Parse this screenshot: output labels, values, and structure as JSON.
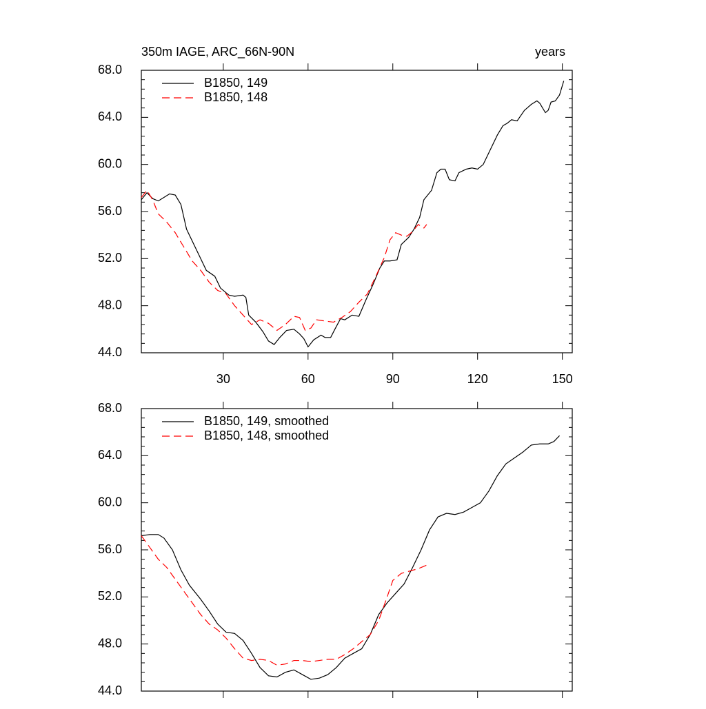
{
  "chart_data": [
    {
      "type": "line",
      "title": "350m IAGE, ARC_66N-90N",
      "subtitle": "years",
      "xlim": [
        1,
        153.5
      ],
      "xticks": [
        30,
        60,
        90,
        120,
        150
      ],
      "ylim": [
        44,
        68
      ],
      "yticks": [
        {
          "value": 44,
          "label": "44.0"
        },
        {
          "value": 48,
          "label": "48.0"
        },
        {
          "value": 52,
          "label": "52.0"
        },
        {
          "value": 56,
          "label": "56.0"
        },
        {
          "value": 60,
          "label": "60.0"
        },
        {
          "value": 64,
          "label": "64.0"
        },
        {
          "value": 68,
          "label": "68.0"
        }
      ],
      "legend": "upper left",
      "series": [
        {
          "name": "B1850, 149",
          "color": "#000000",
          "dash": false,
          "x": [
            1,
            3,
            5,
            7,
            9,
            11,
            13,
            15,
            17,
            21,
            24,
            27,
            29,
            32,
            34,
            37,
            38,
            39,
            41.5,
            44,
            46,
            48,
            50,
            52.4,
            55,
            57,
            58.5,
            60,
            62,
            64.6,
            66,
            68,
            69.5,
            71.5,
            73,
            75.6,
            78,
            80.5,
            83,
            85.4,
            87,
            89,
            91.5,
            93,
            95.6,
            97.5,
            99.5,
            101,
            103.7,
            105.6,
            107,
            108.5,
            110,
            112,
            113.4,
            116,
            118,
            120,
            122,
            124.4,
            127,
            129,
            130.5,
            132,
            134,
            136.6,
            139,
            141,
            142,
            144,
            145,
            146,
            147.5,
            149,
            150.5
          ],
          "values": [
            57.0,
            57.6,
            57.1,
            56.9,
            57.2,
            57.5,
            57.4,
            56.6,
            54.5,
            52.5,
            51.0,
            50.5,
            49.5,
            48.9,
            48.8,
            48.9,
            48.7,
            47.2,
            46.6,
            45.8,
            45.0,
            44.7,
            45.3,
            45.9,
            46.0,
            45.6,
            45.2,
            44.5,
            45.1,
            45.5,
            45.3,
            45.3,
            46.0,
            46.9,
            46.8,
            47.2,
            47.1,
            48.5,
            49.8,
            51.2,
            51.8,
            51.8,
            51.9,
            53.2,
            53.8,
            54.5,
            55.5,
            57.0,
            57.8,
            59.3,
            59.6,
            59.6,
            58.7,
            58.6,
            59.3,
            59.6,
            59.7,
            59.6,
            60.0,
            61.2,
            62.5,
            63.3,
            63.5,
            63.8,
            63.7,
            64.6,
            65.1,
            65.4,
            65.2,
            64.4,
            64.6,
            65.3,
            65.4,
            65.9,
            67.1
          ]
        },
        {
          "name": "B1850, 148",
          "color": "#ff0000",
          "dash": true,
          "x": [
            1,
            3,
            5,
            7,
            10,
            13,
            16,
            19,
            22,
            25,
            28,
            31,
            34,
            37,
            40,
            43,
            46,
            49,
            52,
            55,
            57,
            59,
            61,
            63,
            66,
            69,
            72,
            75,
            78,
            81,
            84,
            87,
            89,
            91,
            93,
            95,
            97,
            99,
            101,
            102
          ],
          "values": [
            57.2,
            57.8,
            57.0,
            55.8,
            55.1,
            54.2,
            53.0,
            51.8,
            51.0,
            50.0,
            49.3,
            49.0,
            48.0,
            47.2,
            46.4,
            46.8,
            46.5,
            45.9,
            46.4,
            47.1,
            47.0,
            45.9,
            46.1,
            46.8,
            46.7,
            46.6,
            47.0,
            47.5,
            48.3,
            49.0,
            50.5,
            52.1,
            53.6,
            54.2,
            54.0,
            53.9,
            54.3,
            54.9,
            54.6,
            54.9
          ]
        }
      ]
    },
    {
      "type": "line",
      "xlim": [
        1,
        153.5
      ],
      "xticks": [
        30,
        60,
        90,
        120,
        150
      ],
      "ylim": [
        44,
        68
      ],
      "yticks": [
        {
          "value": 44,
          "label": "44.0"
        },
        {
          "value": 48,
          "label": "48.0"
        },
        {
          "value": 52,
          "label": "52.0"
        },
        {
          "value": 56,
          "label": "56.0"
        },
        {
          "value": 60,
          "label": "60.0"
        },
        {
          "value": 64,
          "label": "64.0"
        },
        {
          "value": 68,
          "label": "68.0"
        }
      ],
      "legend": "upper left",
      "series": [
        {
          "name": "B1850, 149, smoothed",
          "color": "#000000",
          "dash": false,
          "x": [
            1,
            4,
            7,
            9,
            12,
            15,
            18,
            22,
            25,
            28,
            31,
            34,
            37,
            40,
            43,
            46,
            49,
            52,
            55,
            58,
            61,
            64,
            67,
            70,
            73,
            76,
            79,
            82,
            85,
            88,
            91,
            94,
            97,
            100,
            103,
            106,
            109,
            112,
            115,
            118,
            121,
            124,
            127,
            130,
            133,
            136,
            139,
            142,
            145,
            147,
            149
          ],
          "values": [
            57.2,
            57.3,
            57.3,
            57.0,
            56.0,
            54.3,
            53.0,
            51.8,
            50.8,
            49.7,
            49.0,
            48.9,
            48.3,
            47.2,
            46.0,
            45.3,
            45.2,
            45.6,
            45.8,
            45.4,
            45.0,
            45.1,
            45.4,
            46.0,
            46.8,
            47.2,
            47.6,
            48.8,
            50.5,
            51.5,
            52.3,
            53.1,
            54.5,
            56.0,
            57.7,
            58.8,
            59.1,
            59.0,
            59.2,
            59.6,
            60.0,
            61.0,
            62.3,
            63.3,
            63.8,
            64.3,
            64.9,
            65.0,
            65.0,
            65.2,
            65.7
          ]
        },
        {
          "name": "B1850, 148, smoothed",
          "color": "#ff0000",
          "dash": true,
          "x": [
            1,
            4,
            7,
            10,
            13,
            16,
            19,
            22,
            25,
            28,
            31,
            34,
            37,
            40,
            43,
            46,
            49,
            52,
            55,
            58,
            61,
            64,
            67,
            70,
            73,
            76,
            79,
            82,
            85,
            88,
            90,
            93,
            96,
            99,
            102
          ],
          "values": [
            57.2,
            56.2,
            55.2,
            54.5,
            53.5,
            52.5,
            51.5,
            50.5,
            49.7,
            49.2,
            48.5,
            47.6,
            46.8,
            46.6,
            46.7,
            46.6,
            46.2,
            46.3,
            46.6,
            46.6,
            46.5,
            46.6,
            46.7,
            46.7,
            47.1,
            47.6,
            48.2,
            48.8,
            50.0,
            52.0,
            53.4,
            54.0,
            54.2,
            54.4,
            54.7
          ]
        }
      ]
    }
  ]
}
